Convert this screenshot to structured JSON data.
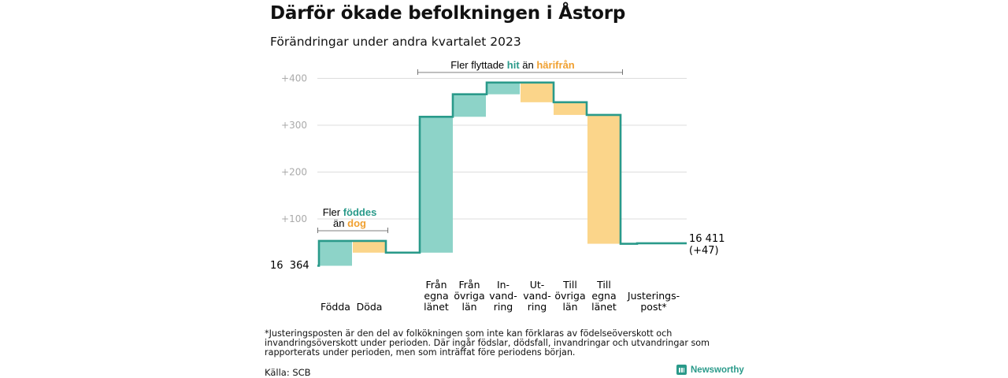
{
  "title": "Därför ökade befolkningen i Åstorp",
  "subtitle": "Förändringar under andra kvartalet 2023",
  "footnote": "*Justeringsposten är den del av folkökningen som inte kan förklaras av födelseöverskott och invandringsöverskott under perioden. Där ingår födslar, dödsfall, invandringar och utvandringar som rapporterats under perioden, men som inträffat före periodens början.",
  "source": "Källa: SCB",
  "brand": {
    "name": "Newsworthy",
    "icon": "newsworthy-logo-icon"
  },
  "colors": {
    "increase": "#8dd3c8",
    "decrease": "#fbd58a",
    "line": "#2a9a8a",
    "hit": "#2a9a8a",
    "harifran": "#f0a030",
    "grid": "#dddddd",
    "tick": "#aaaaaa"
  },
  "annotations": {
    "births": {
      "line1_prefix": "Fler ",
      "line1_highlight": "föddes",
      "line2_prefix": "än ",
      "line2_highlight": "dog"
    },
    "migration": {
      "prefix": "Fler flyttade ",
      "hit": "hit",
      "middle": " än ",
      "harifran": "härifrån"
    }
  },
  "start_label": "16  364",
  "end_label": {
    "line1": "16 411",
    "line2": "(+47)"
  },
  "chart_data": {
    "type": "waterfall",
    "start_value": 16364,
    "end_value": 16411,
    "net_change": 47,
    "ylim": [
      0,
      400
    ],
    "yticks": [
      {
        "value": 100,
        "label": "+100"
      },
      {
        "value": 200,
        "label": "+200"
      },
      {
        "value": 300,
        "label": "+300"
      },
      {
        "value": 400,
        "label": "+400"
      }
    ],
    "grid": true,
    "steps": [
      {
        "category": "Födda",
        "label_lines": [
          "Födda"
        ],
        "change": 53,
        "type": "increase"
      },
      {
        "category": "Döda",
        "label_lines": [
          "Döda"
        ],
        "change": -25,
        "type": "decrease"
      },
      {
        "category": "Från egna länet",
        "label_lines": [
          "Från",
          "egna",
          "länet"
        ],
        "change": 290,
        "type": "increase"
      },
      {
        "category": "Från övriga län",
        "label_lines": [
          "Från",
          "övriga",
          "län"
        ],
        "change": 48,
        "type": "increase"
      },
      {
        "category": "Invandring",
        "label_lines": [
          "In-",
          "vand-",
          "ring"
        ],
        "change": 25,
        "type": "increase"
      },
      {
        "category": "Utvandring",
        "label_lines": [
          "Ut-",
          "vand-",
          "ring"
        ],
        "change": -42,
        "type": "decrease"
      },
      {
        "category": "Till övriga län",
        "label_lines": [
          "Till",
          "övriga",
          "län"
        ],
        "change": -27,
        "type": "decrease"
      },
      {
        "category": "Till egna länet",
        "label_lines": [
          "Till",
          "egna",
          "länet"
        ],
        "change": -275,
        "type": "decrease"
      },
      {
        "category": "Justeringspost*",
        "label_lines": [
          "Justerings-",
          "post*"
        ],
        "change": 1,
        "type": "adjustment"
      }
    ]
  }
}
